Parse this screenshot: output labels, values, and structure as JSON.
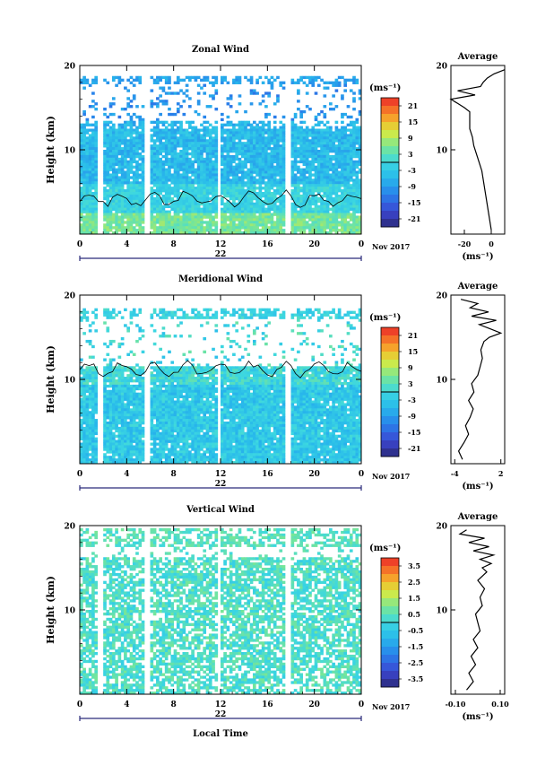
{
  "chart_data": [
    {
      "type": "heatmap",
      "title": "Zonal Wind",
      "ylabel": "Height (km)",
      "ylim": [
        0,
        20
      ],
      "xlim": [
        0,
        24
      ],
      "x_ticks": [
        "0",
        "4",
        "8",
        "12",
        "16",
        "20",
        "0"
      ],
      "y_ticks": [
        "20",
        "10"
      ],
      "date_label": "22",
      "month_label": "Nov 2017",
      "colorbar": {
        "unit": "(ms⁻¹)",
        "ticks": [
          "21",
          "15",
          "9",
          "3",
          "-3",
          "-9",
          "-15",
          "-21"
        ]
      },
      "average_profile": {
        "title": "Average",
        "xlabel": "(ms⁻¹)",
        "x_ticks": [
          "-20",
          "0"
        ],
        "y_ticks": [
          "20",
          "10"
        ],
        "xlim": [
          -30,
          10
        ],
        "height": [
          0.5,
          1.5,
          2.5,
          3.5,
          4.5,
          5.5,
          6.5,
          7.5,
          8.5,
          9.5,
          10.5,
          11.5,
          12.5,
          13.5,
          14.5,
          15.0,
          15.5,
          16.0,
          16.5,
          17.0,
          17.5,
          18.0,
          18.5,
          19.0,
          19.5
        ],
        "value": [
          0,
          -1,
          -2,
          -3,
          -4,
          -5,
          -6,
          -7,
          -9,
          -11,
          -13,
          -14,
          -16,
          -16,
          -16,
          -20,
          -25,
          -30,
          -12,
          -25,
          -8,
          -6,
          -3,
          2,
          10
        ]
      }
    },
    {
      "type": "heatmap",
      "title": "Meridional Wind",
      "ylabel": "Height (km)",
      "ylim": [
        0,
        20
      ],
      "xlim": [
        0,
        24
      ],
      "x_ticks": [
        "0",
        "4",
        "8",
        "12",
        "16",
        "20",
        "0"
      ],
      "y_ticks": [
        "20",
        "10"
      ],
      "date_label": "22",
      "month_label": "Nov 2017",
      "colorbar": {
        "unit": "(ms⁻¹)",
        "ticks": [
          "21",
          "15",
          "9",
          "3",
          "-3",
          "-9",
          "-15",
          "-21"
        ]
      },
      "average_profile": {
        "title": "Average",
        "xlabel": "(ms⁻¹)",
        "x_ticks": [
          "-4",
          "2"
        ],
        "y_ticks": [
          "20",
          "10"
        ],
        "xlim": [
          -4.5,
          2.5
        ],
        "height": [
          0.5,
          1.5,
          2.5,
          3.5,
          4.5,
          5.5,
          6.5,
          7.5,
          8.5,
          9.5,
          10.5,
          11.5,
          12.5,
          13.5,
          14.5,
          15.0,
          15.5,
          16.0,
          16.5,
          17.0,
          17.5,
          18.0,
          18.5,
          19.0,
          19.5
        ],
        "value": [
          -3.0,
          -3.5,
          -2.8,
          -2.2,
          -2.6,
          -2.0,
          -1.6,
          -2.2,
          -1.5,
          -1.8,
          -1.0,
          -0.7,
          -0.4,
          -0.6,
          -0.2,
          0.5,
          2.0,
          0.6,
          -0.8,
          1.4,
          -1.8,
          0.4,
          -2.0,
          -1.0,
          -3.2
        ]
      }
    },
    {
      "type": "heatmap",
      "title": "Vertical Wind",
      "ylabel": "Height (km)",
      "xlabel": "Local Time",
      "ylim": [
        0,
        20
      ],
      "xlim": [
        0,
        24
      ],
      "x_ticks": [
        "0",
        "4",
        "8",
        "12",
        "16",
        "20",
        "0"
      ],
      "y_ticks": [
        "20",
        "10"
      ],
      "date_label": "22",
      "month_label": "Nov 2017",
      "colorbar": {
        "unit": "(ms⁻¹)",
        "ticks": [
          "3.5",
          "2.5",
          "1.5",
          "0.5",
          "-0.5",
          "-1.5",
          "-2.5",
          "-3.5"
        ]
      },
      "average_profile": {
        "title": "Average",
        "xlabel": "(ms⁻¹)",
        "x_ticks": [
          "-0.10",
          "0.10"
        ],
        "y_ticks": [
          "20",
          "10"
        ],
        "xlim": [
          -0.12,
          0.12
        ],
        "height": [
          0.5,
          1.5,
          2.5,
          3.5,
          4.5,
          5.5,
          6.5,
          7.5,
          8.5,
          9.5,
          10.5,
          11.5,
          12.5,
          13.5,
          14.5,
          15.0,
          15.5,
          16.0,
          16.5,
          17.0,
          17.5,
          18.0,
          18.5,
          19.0,
          19.5
        ],
        "value": [
          -0.05,
          -0.02,
          -0.04,
          -0.01,
          -0.03,
          0.0,
          -0.02,
          0.01,
          0.0,
          -0.01,
          0.02,
          0.01,
          0.03,
          0.0,
          0.04,
          0.02,
          0.06,
          0.01,
          0.07,
          -0.02,
          0.05,
          -0.04,
          0.03,
          -0.08,
          -0.05
        ]
      }
    }
  ]
}
